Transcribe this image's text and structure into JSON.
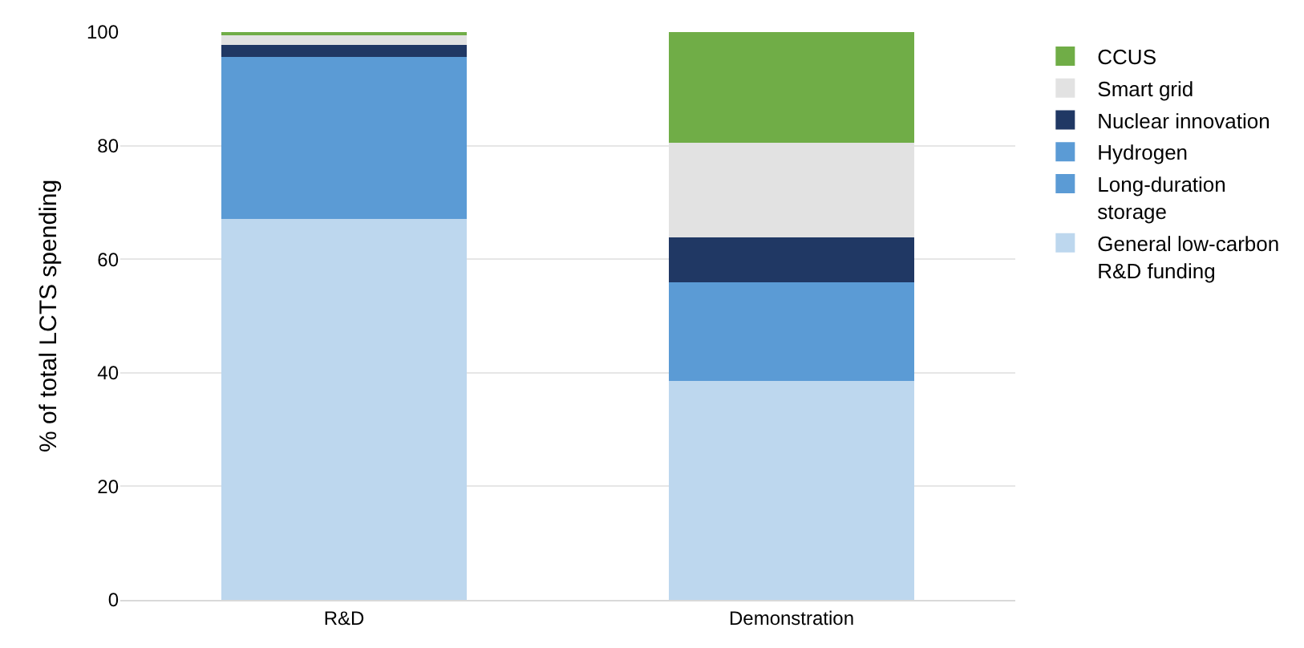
{
  "chart_data": {
    "type": "bar",
    "stacked": true,
    "ylabel": "% of total LCTS spending",
    "categories": [
      "R&D",
      "Demonstration"
    ],
    "series": [
      {
        "name": "General low-carbon R&D funding",
        "color": "#bdd7ee",
        "values": [
          67.1,
          38.5
        ]
      },
      {
        "name": "Long-duration storage",
        "color": "#5b9bd5",
        "values": [
          0,
          0
        ]
      },
      {
        "name": "Hydrogen",
        "color": "#5b9bd5",
        "values": [
          28.5,
          17.4
        ]
      },
      {
        "name": "Nuclear innovation",
        "color": "#203864",
        "values": [
          2.2,
          8.0
        ]
      },
      {
        "name": "Smart grid",
        "color": "#e2e2e2",
        "values": [
          1.7,
          16.6
        ]
      },
      {
        "name": "CCUS",
        "color": "#70ad47",
        "values": [
          0.5,
          19.5
        ]
      }
    ],
    "ylim": [
      0,
      100
    ],
    "yticks": [
      0,
      20,
      40,
      60,
      80,
      100
    ],
    "grid": "y",
    "legend": "right"
  }
}
